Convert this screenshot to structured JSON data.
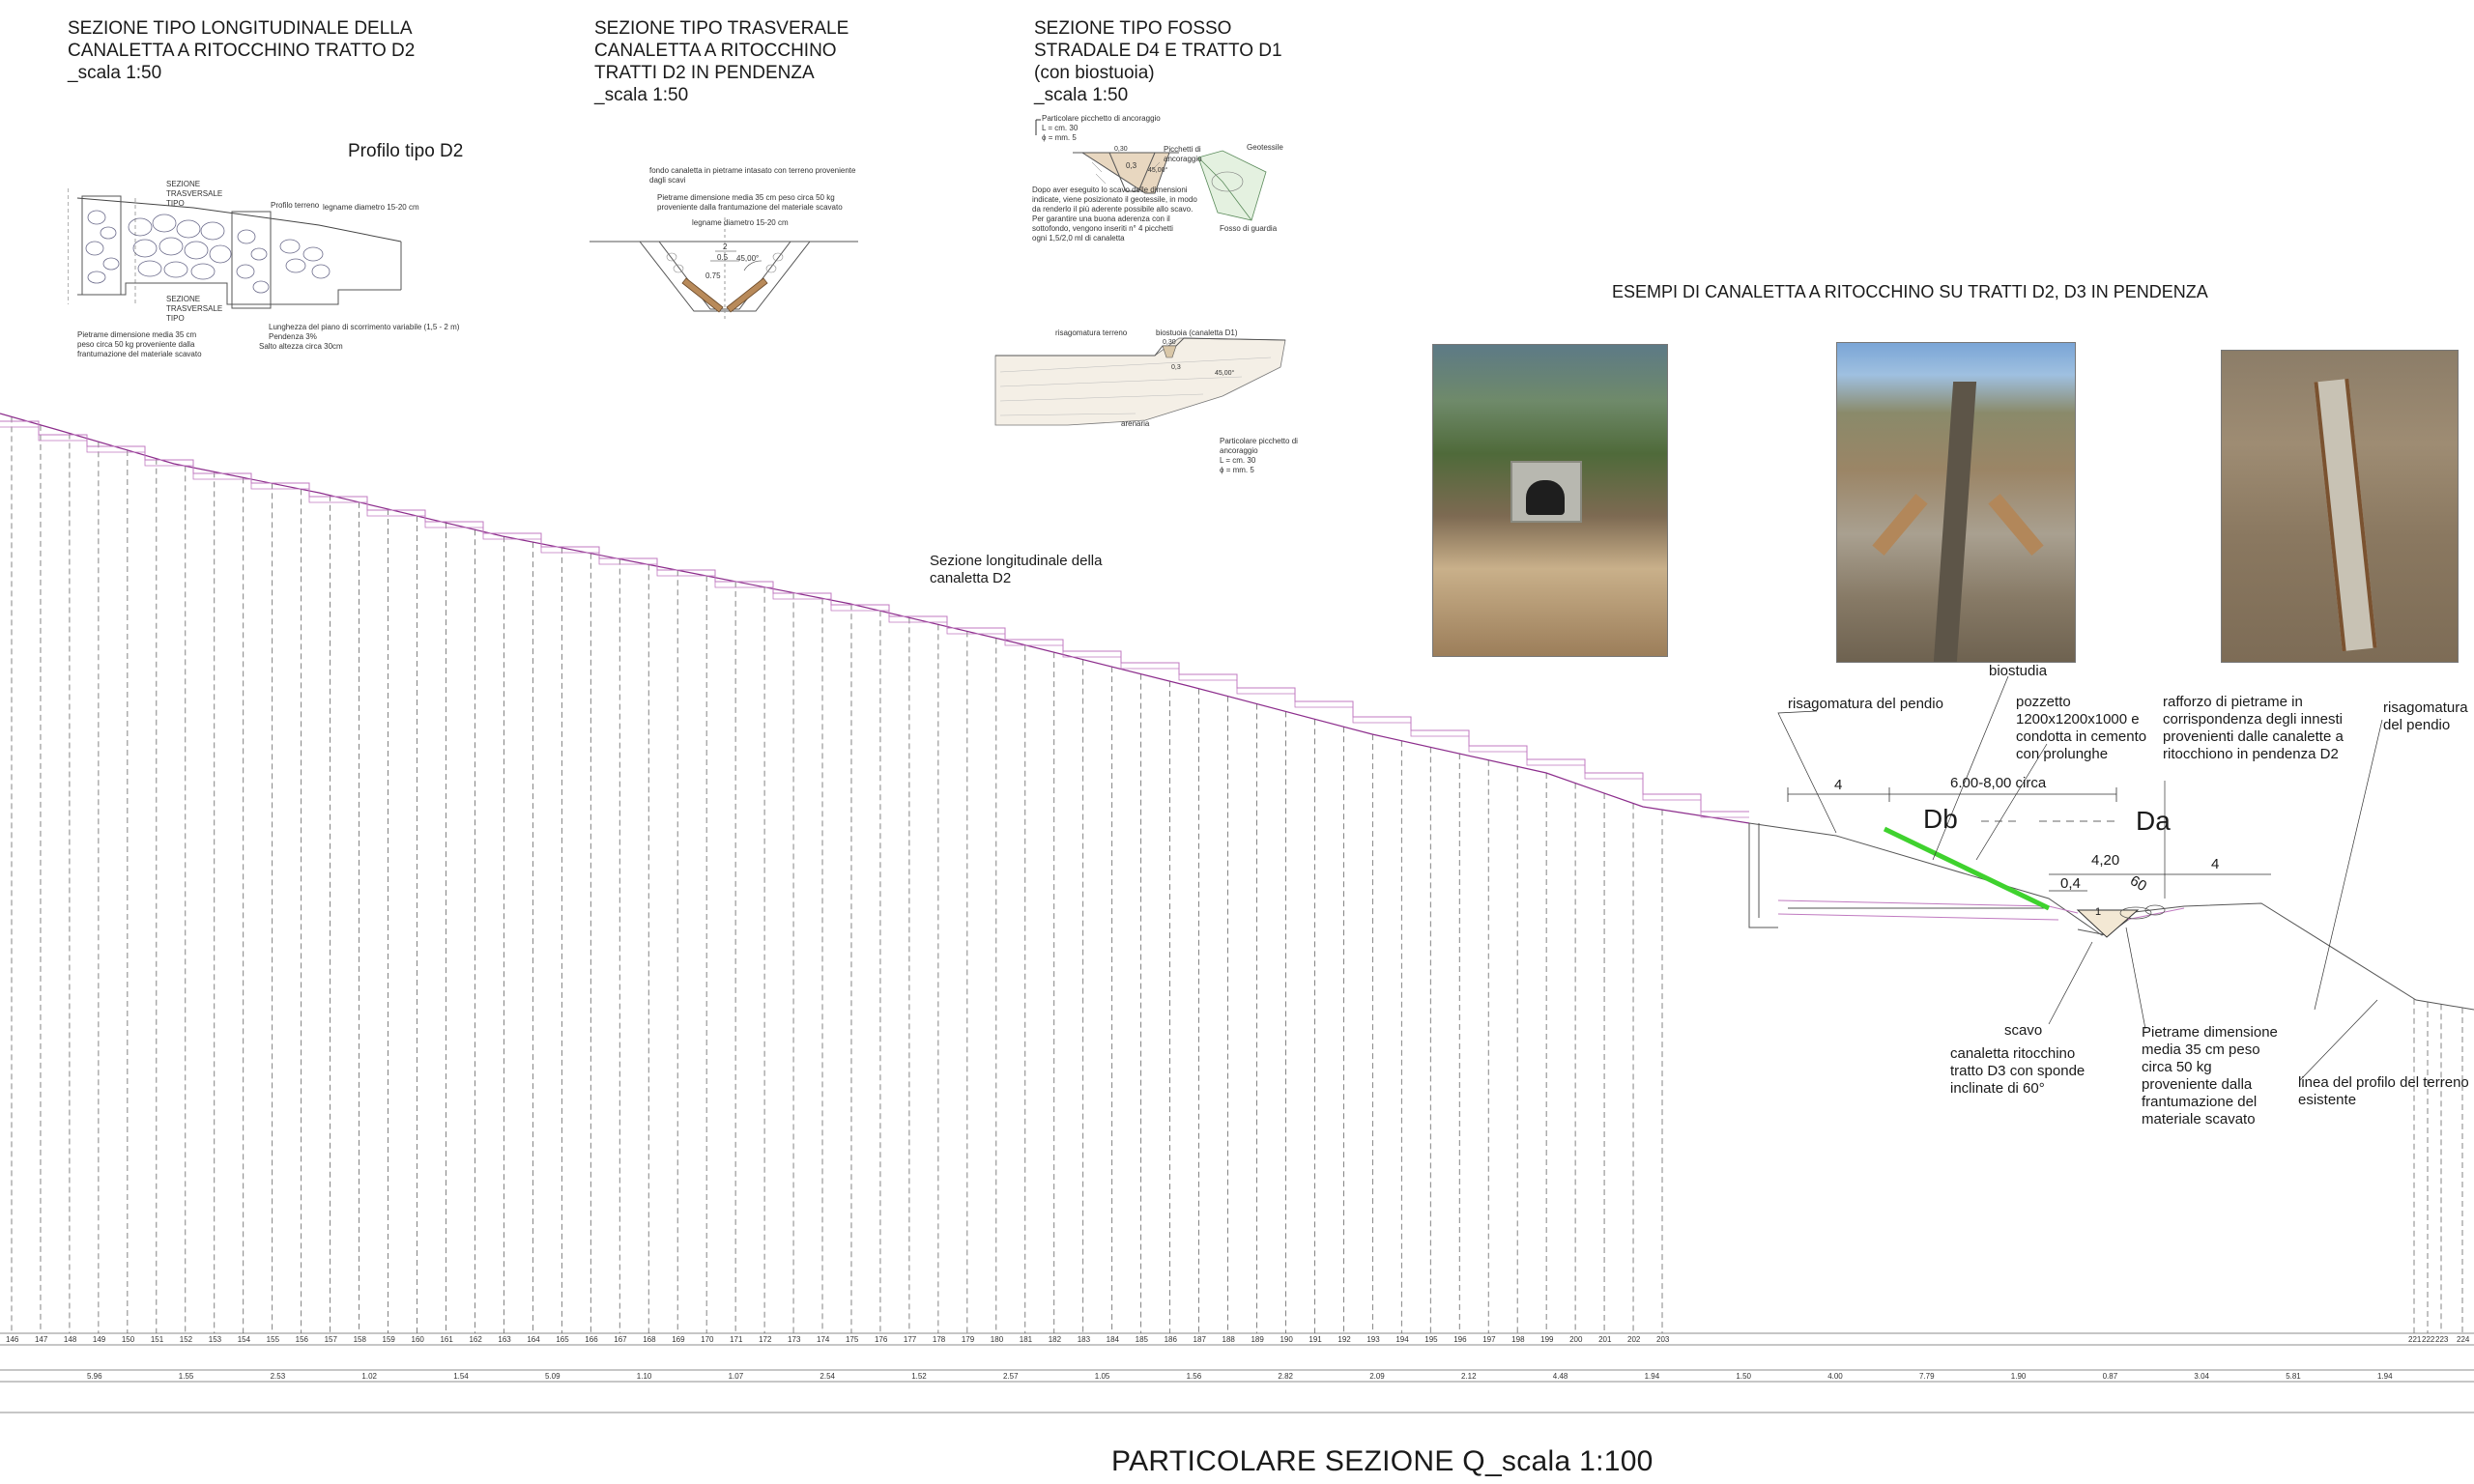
{
  "section_headers": {
    "longitudinal": "SEZIONE TIPO LONGITUDINALE DELLA\nCANALETTA A RITOCCHINO TRATTO D2\n_scala 1:50",
    "transversal": "SEZIONE TIPO TRASVERALE\nCANALETTA A RITOCCHINO\nTRATTI D2 IN PENDENZA\n_scala 1:50",
    "ditch": "SEZIONE TIPO FOSSO\nSTRADALE D4 E TRATTO D1\n(con biostuoia)\n_scala 1:50"
  },
  "profile_title": "Profilo tipo D2",
  "detail1": {
    "sezione_trasversale_top": "SEZIONE\nTRASVERSALE\nTIPO",
    "sezione_trasversale_bottom": "SEZIONE\nTRASVERSALE\nTIPO",
    "profilo_terreno": "Profilo terreno",
    "legname": "legname diametro 15-20 cm",
    "lunghezza": "Lunghezza del piano di scorrimento variabile (1,5 - 2 m)\nPendenza 3%",
    "salto": "Salto altezza circa 30cm",
    "pietrame": "Pietrame dimensione media 35 cm\npeso circa 50 kg proveniente dalla\nfrantumazione del materiale scavato"
  },
  "detail2": {
    "fondo": "fondo canaletta in pietrame intasato con terreno proveniente\ndagli scavi",
    "pietrame": "Pietrame dimensione media 35 cm peso circa 50 kg\nproveniente dalla frantumazione del materiale scavato",
    "legname": "legname diametro 15-20 cm",
    "dim_top": "2",
    "dim_mid": "0.5",
    "dim_left": "0.75",
    "dim_angle": "45,00°"
  },
  "detail3": {
    "picchetto_top": "Particolare picchetto di ancoraggio\nL = cm. 30\nϕ = mm. 5",
    "dopo": "Dopo aver eseguito lo scavo delle dimensioni\nindicate, viene posizionato il geotessile, in modo\nda renderlo il più aderente possibile allo scavo.\nPer garantire una buona aderenza con il\nsottofondo, vengono inseriti n° 4 picchetti\nogni 1,5/2,0 ml di canaletta",
    "picchetti": "Picchetti di\nancoraggio",
    "geotessile": "Geotessile",
    "fosso": "Fosso di guardia",
    "dim_03": "0,3",
    "dim_030": "0,30",
    "dim_angle": "45,00°"
  },
  "detail4": {
    "risagomatura": "risagomatura terreno",
    "biostuoia": "biostuoia (canaletta D1)",
    "arenaria": "arenaria",
    "picchetto": "Particolare picchetto di\nancoraggio\nL = cm. 30\nϕ = mm. 5",
    "dim_03": "0,3",
    "dim_030": "0,30",
    "dim_angle": "45,00°"
  },
  "examples_heading": "ESEMPI DI CANALETTA A RITOCCHINO SU TRATTI D2, D3 IN PENDENZA",
  "photos": [
    "photo-1",
    "photo-2",
    "photo-3"
  ],
  "longitudinal_label": "Sezione longitudinale della\ncanaletta D2",
  "annotations": {
    "biostudia": "biostudia",
    "risagomatura_left": "risagomatura del pendio",
    "pozzetto": "pozzetto\n1200x1200x1000 e\ncondotta in cemento\ncon prolunghe",
    "rafforzo": "rafforzo di pietrame in\ncorrispondenza degli innesti\nprovenienti dalle canalette a\nritocchiono in pendenza D2",
    "risagomatura_right": "risagomatura\ndel pendio",
    "scavo": "scavo",
    "canaletta": "canaletta ritocchino\ntratto D3 con sponde\ninclinate di 60°",
    "pietrame": "Pietrame dimensione\nmedia 35 cm peso\ncirca 50 kg\nproveniente dalla\nfrantumazione del\nmateriale scavato",
    "linea": "linea del profilo del terreno\nesistente"
  },
  "dimensions": {
    "d4": "4",
    "span": "6.00-8,00 circa",
    "db": "Db",
    "da": "Da",
    "d420": "4,20",
    "d04": "0,4",
    "d60": "60",
    "d1": "1",
    "d4_right": "4"
  },
  "station_ids": [
    "146",
    "147",
    "148",
    "149",
    "150",
    "151",
    "152",
    "153",
    "154",
    "155",
    "156",
    "157",
    "158",
    "159",
    "160",
    "161",
    "162",
    "163",
    "164",
    "165",
    "166",
    "167",
    "168",
    "169",
    "170",
    "171",
    "172",
    "173",
    "174",
    "175",
    "176",
    "177",
    "178",
    "179",
    "180",
    "181",
    "182",
    "183",
    "184",
    "185",
    "186",
    "187",
    "188",
    "189",
    "190",
    "191",
    "192",
    "193",
    "194",
    "195",
    "196",
    "197",
    "198",
    "199",
    "200",
    "201",
    "202",
    "203",
    "221",
    "222",
    "223",
    "224"
  ],
  "distances": [
    "5.96",
    "1.55",
    "2.53",
    "1.02",
    "1.54",
    "5.09",
    "1.10",
    "1.07",
    "2.54",
    "1.52",
    "2.57",
    "1.05",
    "1.56",
    "2.82",
    "2.09",
    "2.12",
    "4.48",
    "1.94",
    "1.50",
    "4.00",
    "7.79",
    "1.90",
    "0.87",
    "3.04",
    "5.81",
    "1.94"
  ],
  "bottom_title": "PARTICOLARE SEZIONE Q_scala 1:100",
  "colors": {
    "terrain": "#8c2d8c",
    "dash_lines": "#555555",
    "green_highlight": "#3fd22e",
    "ink": "#1a1a1a"
  }
}
